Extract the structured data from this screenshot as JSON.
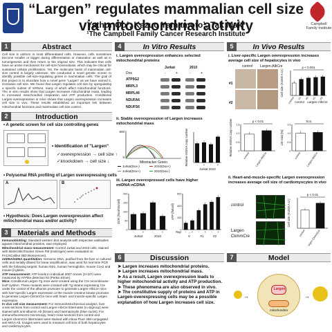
{
  "header": {
    "title": "“Largen” regulates mammalian cell size via mitochondrial activity",
    "authors": "Yathor Oo¹, Kazuo Yamamoto¹, Tak Mak¹",
    "institute": "¹The Campbell Family Cancer Research Institute",
    "logo_right_text": "Campbell Family Institute"
  },
  "sections": {
    "abstract": {
      "num": "1",
      "title": "Abstract",
      "text": "Cell size is uniform in most differentiated cells. However, cells sometimes become smaller or bigger during differentiation or maturation as well as in tumorigenesis and then return to the original size. This indicates that cells have an active mechanism for cell-size homeostasis, which may be critical for sustained cellular proliferation. Yet, the molecular basis of mammalian cell-size control is largely unknown. We conducted a novel genetic screen to identify possible cell-size-regulating genes in mammalian cells. The goal of this project is to elucidate how a novel gene \"Largen\" as we have named it, increases cell size. We found that Largen regulates cell size by upregulating a specific subset of mRNAs, many of which affect mitochondrial functions. The in vitro results show that Largen increases mitochondrial mass, leading to increased mitochondrial respiration and ATP production. Conditional Largen-overexpression in mice shows that Largen overexpression increases cell size in vivo. These results established an important link between mitochondrial functions and mammalian cell size control."
    },
    "introduction": {
      "num": "2",
      "title": "Introduction",
      "screen_label": "A genetic screen for cell size controlling genes",
      "identification": "Identification of \"Largen\"",
      "overexp": "overexpression",
      "knockdown": "knockdown",
      "cell_size": "cell size",
      "polysome_label": "Polysomal RNA profiling of Largen overexpressing cells",
      "panel_a": "A",
      "panel_b": "B",
      "hypothesis": "Hypothesis: Does Largen overexpression affect mitochondrial mass and/or activity?"
    },
    "methods": {
      "num": "3",
      "title": "Materials and Methods",
      "items": [
        {
          "head": "Immunoblotting:",
          "text": "Standard western blot analysis with respective antibodies against mitochondrial proteins, was employed."
        },
        {
          "head": "Mitochondrial mass measurement:",
          "text": "Control Jurkat and 2010 cells, stained with 50nM MitoTracker Green FM (Invitrogen) were evaluated on FACSCalibur (BD Biosciences)."
        },
        {
          "head": "mtDNA/nDNA quantitation:",
          "text": "Genomic DNA, purified from the liver or cultured cells and serially diluted for linear amplification, was used for real-time PCR with the following targets: human ND1, human hemoglobin, mouse Cox2 and mouse β-globin."
        },
        {
          "head": "ATP measurement:",
          "text": "ATP levels in individual 2007 clones (4×10⁶) were measured by ATPlite detection kit (Perkin Elmer)."
        },
        {
          "head": "Mice:",
          "text": "Conditional Largen-Tg mice were created using the Cre recombinase-loxP system. These mutants were crossed with Tg strains expressing Cre under the control of the albumin promoter to generate Largen-AlbCre mice with liver-specific Largen expression or the muscle creatine kinase promoter to generate Largen-CkmmCre mice with heart- and muscle-specific Largen expression."
        },
        {
          "head": "In vivo cell size measurement:",
          "text": "For immunohistochemical analysis, liver cross-sections from control and Largen-AlbCre littermates (n=6/group) were stained with anti-albumin Ab (brown) and haematoxylin (blue nuclei). For immunofluorescent microscopy, heart cross-sections from control and Largen-CkmmCre littermates were stained with Alexa Fluor 488-conjugated anti-WGA Ab. Images were used to measure cell size of both hepatocytes and cardiomyocytes."
        }
      ]
    },
    "in_vitro": {
      "num": "4",
      "title": "In Vitro Results",
      "i": "i.   Largen overexpression enhances selected mitochondrial proteins",
      "ii": "ii.  Stable overexpression of Largen increases mitochondrial mass",
      "iii": "iii.  Largen overexpressed cells have higher mtDNA:nCDNA"
    },
    "in_vivo": {
      "num": "5",
      "title": "In Vivo Results",
      "i": "i.   Liver-specific Largen overexpression increases average cell size of hepatocytes in vivo",
      "ii": "ii.  Heart-and-muscle-specific Largen overexpression increases average cell size of cardiomyocytes in vivo",
      "control": "control",
      "largen_albcre": "Largen-AlbCre",
      "largen": "Largen",
      "ckmmcre": "CkmmCre",
      "row1": "#1",
      "row2": "#2"
    },
    "discussion": {
      "num": "6",
      "title": "Discussion",
      "items": [
        "Largen increases mitochondrial proteins.",
        "Largen increases mitochondrial mass.",
        "As a result, Largen overexpression leads to higher mitochondrial activity and ATP production.",
        "These phenomena are also observed in vivo.",
        "The constitutive supply of proteins and ATP in Largen-overexpressing cells may be a possible explanation of how Largen increases cell size."
      ]
    },
    "model": {
      "num": "7",
      "title": "Model",
      "largen_label": "Largen",
      "center_label": "mitochondria"
    }
  },
  "chart_data": [
    {
      "type": "table",
      "title": "Immunoblot",
      "columns": [
        "Jurkat",
        "2010"
      ],
      "lanes": [
        "Dox",
        "-",
        "+",
        "-",
        "+"
      ],
      "rows": [
        "ATP5G2",
        "MRPL3",
        "MRPL49",
        "NDUFA6",
        "NDUFS6"
      ]
    },
    {
      "type": "line",
      "title": "",
      "xlabel": "Mitotracker Green",
      "ylabel": "",
      "ylim": [
        0,
        600
      ],
      "series": [
        {
          "name": "Jurkat(Dox-)"
        },
        {
          "name": "2010(Dox+)"
        },
        {
          "name": "Jurkat(Dox+)"
        },
        {
          "name": "2010(Dox-)"
        }
      ],
      "yticks": [
        "600",
        "0"
      ]
    },
    {
      "type": "bar",
      "title": "",
      "ylabel": "Relative mtDNA copy number",
      "categories": [
        "Jurkat-",
        "Jurkat+",
        "2010-",
        "2010+"
      ],
      "values": [
        1.0,
        1.05,
        0.95,
        1.35
      ],
      "ylim": [
        0,
        1.6
      ],
      "dox": [
        "-",
        "+",
        "-",
        "+"
      ],
      "xlabel": "Jurkat  2010"
    },
    {
      "type": "bar",
      "title": "",
      "ylabel": "OCR (fmol/min/cell)",
      "categories": [
        "Jurkat-",
        "Jurkat+",
        "2010-",
        "2010+"
      ],
      "values": [
        85,
        90,
        150,
        75
      ],
      "ylim": [
        0,
        200
      ],
      "yticks": [
        "0",
        "50",
        "100",
        "150",
        "200"
      ],
      "dox": [
        "-",
        "+",
        "-",
        "+"
      ],
      "groups": [
        "Jurkat",
        "2010"
      ]
    },
    {
      "type": "bar",
      "title": "",
      "ylabel": "ATP (fM/cell)",
      "categories": [
        "V-",
        "V+",
        "#1-",
        "#1+",
        "#2-",
        "#2+"
      ],
      "values": [
        110,
        150,
        320,
        420,
        460,
        540
      ],
      "ylim": [
        0,
        600
      ],
      "yticks": [
        "0",
        "200",
        "400",
        "600"
      ],
      "dox": [
        "-",
        "+",
        "-",
        "+",
        "-",
        "+"
      ],
      "groups": [
        "V",
        "#1",
        "#2"
      ],
      "xcaption": "Rap"
    },
    {
      "type": "bar",
      "title": "",
      "ylabel": "Cell size (X1000 A.U.)",
      "categories": [
        "control",
        "#1",
        "#2",
        "#1",
        "#2"
      ],
      "values": [
        1.0,
        1.3,
        1.4,
        1.45,
        1.5
      ],
      "ylim": [
        0,
        2.0
      ],
      "annotation": "p < 0.001",
      "groups": [
        "control",
        "Largen-AlbCre"
      ]
    },
    {
      "type": "bar",
      "title": "",
      "ylabel": "Relative mtDNA copy number",
      "categories": [
        "control",
        "Largen-AlbCre"
      ],
      "values": [
        0.95,
        1.15
      ],
      "ylim": [
        0,
        1.5
      ],
      "yticks": [
        "0",
        "0.5",
        "1.0",
        "1.5"
      ],
      "annotation": "p < 0.01"
    },
    {
      "type": "bar",
      "title": "",
      "ylabel": "L/E ratio [%]",
      "categories": [
        "control",
        "Largen-AlbCre"
      ],
      "values": [
        1.0,
        1.05
      ],
      "ylim": [
        0,
        1.5
      ],
      "yticks": [
        "0",
        "0.5",
        "1.0",
        "1.5"
      ],
      "annotation": "N.S."
    },
    {
      "type": "bar",
      "title": "",
      "ylabel": "Cell size (X1000 A.U.)",
      "categories": [
        "control",
        "Largen-CkmmCre"
      ],
      "values": [
        1.2,
        1.65
      ],
      "ylim": [
        0,
        2
      ],
      "annotation": "p < 0.01"
    }
  ],
  "colors": {
    "header_bar": "#eaeaea",
    "num_box": "#555555",
    "brand_red": "#c0262b",
    "brand_blue": "#1f3f8a",
    "green_fluor": "#2aa02a"
  }
}
